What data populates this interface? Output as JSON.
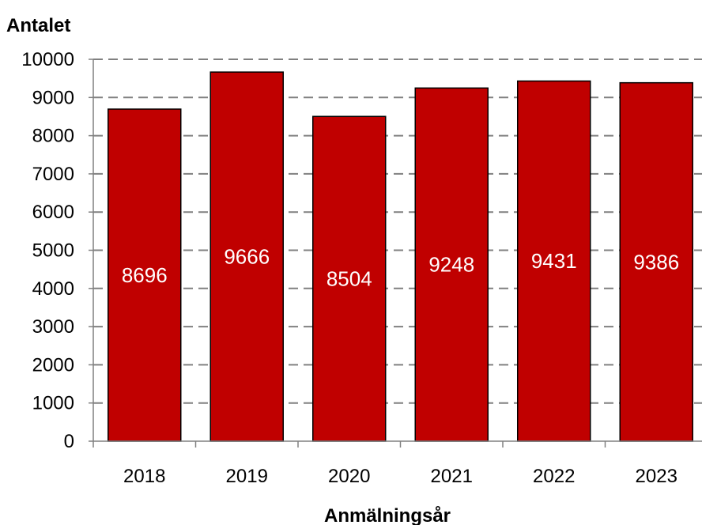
{
  "chart_data": {
    "type": "bar",
    "ylabel": "Antalet",
    "xlabel": "Anmälningsår",
    "categories": [
      "2018",
      "2019",
      "2020",
      "2021",
      "2022",
      "2023"
    ],
    "values": [
      8696,
      9666,
      8504,
      9248,
      9431,
      9386
    ],
    "data_labels": [
      "8696",
      "9666",
      "8504",
      "9248",
      "9431",
      "9386"
    ],
    "ylim": [
      0,
      10000
    ],
    "yticks": [
      0,
      1000,
      2000,
      3000,
      4000,
      5000,
      6000,
      7000,
      8000,
      9000,
      10000
    ],
    "ytick_labels": [
      "0",
      "1000",
      "2000",
      "3000",
      "4000",
      "5000",
      "6000",
      "7000",
      "8000",
      "9000",
      "10000"
    ],
    "grid": true,
    "grid_style": "dashed",
    "colors": {
      "bar": "#c00000",
      "bar_stroke": "#000000",
      "grid": "#808080",
      "data_label": "#ffffff"
    }
  }
}
